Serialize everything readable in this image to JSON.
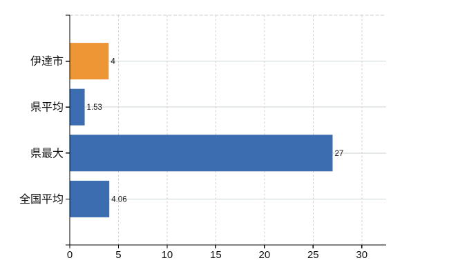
{
  "chart_data": {
    "type": "bar",
    "orientation": "horizontal",
    "title": "",
    "xlabel": "",
    "ylabel": "",
    "categories": [
      "伊達市",
      "県平均",
      "県最大",
      "全国平均"
    ],
    "values": [
      4,
      1.53,
      27,
      4.06
    ],
    "value_labels": [
      "4",
      "1.53",
      "27",
      "4.06"
    ],
    "bar_colors": [
      "#EE9536",
      "#3B6DB0",
      "#3B6DB0",
      "#3B6DB0"
    ],
    "x_ticks": [
      0,
      5,
      10,
      15,
      20,
      25,
      30
    ],
    "x_tick_labels": [
      "0",
      "5",
      "10",
      "15",
      "20",
      "25",
      "30"
    ],
    "xlim": [
      0,
      32.5
    ],
    "legend": null,
    "grid": {
      "horizontal": "solid",
      "vertical": "dashed",
      "top_border": "dashed"
    },
    "colors": {
      "background": "#ffffff",
      "h_grid": "#cdd6cd",
      "v_grid": "#d5cfda",
      "top_border": "#d5cfda",
      "axis": "#000000",
      "category_text": "#111111",
      "value_text": "#111111",
      "tick_text": "#111111"
    }
  }
}
